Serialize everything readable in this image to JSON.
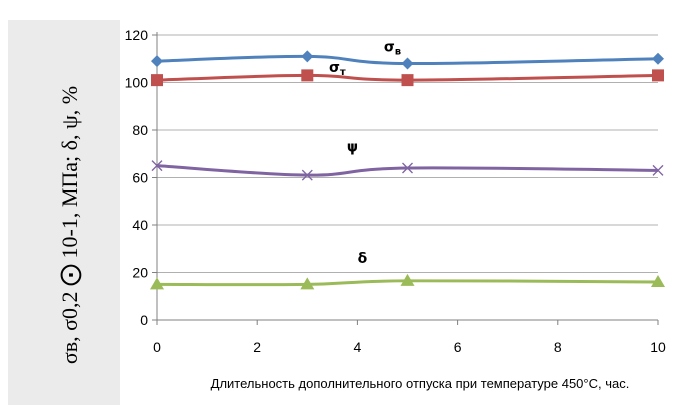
{
  "chart_data": {
    "type": "line",
    "ylabel": "σв, σ0,2 ⨀ 10-1, МПа; δ, ψ, %",
    "xlabel": "Длительность дополнительного отпуска при температуре 450°С, час.",
    "xlim": [
      0,
      10
    ],
    "ylim": [
      0,
      120
    ],
    "xticks": [
      "0",
      "2",
      "4",
      "6",
      "8",
      "10"
    ],
    "yticks": [
      "0",
      "20",
      "40",
      "60",
      "80",
      "100",
      "120"
    ],
    "grid": "horizontal",
    "legend": "none",
    "series": [
      {
        "name": "σв",
        "label": "σв",
        "color": "#4f81bd",
        "marker": "diamond",
        "x": [
          0,
          3,
          5,
          10
        ],
        "values": [
          109,
          111,
          108,
          110
        ]
      },
      {
        "name": "σт",
        "label": "σт",
        "color": "#c0504d",
        "marker": "square",
        "x": [
          0,
          3,
          5,
          10
        ],
        "values": [
          101,
          103,
          101,
          103
        ]
      },
      {
        "name": "ψ",
        "label": "ψ",
        "color": "#8064a2",
        "marker": "x",
        "x": [
          0,
          3,
          5,
          10
        ],
        "values": [
          65,
          61,
          64,
          63
        ]
      },
      {
        "name": "δ",
        "label": "δ",
        "color": "#9bbb59",
        "marker": "triangle",
        "x": [
          0,
          3,
          5,
          10
        ],
        "values": [
          15,
          15,
          16.5,
          16
        ]
      }
    ]
  }
}
